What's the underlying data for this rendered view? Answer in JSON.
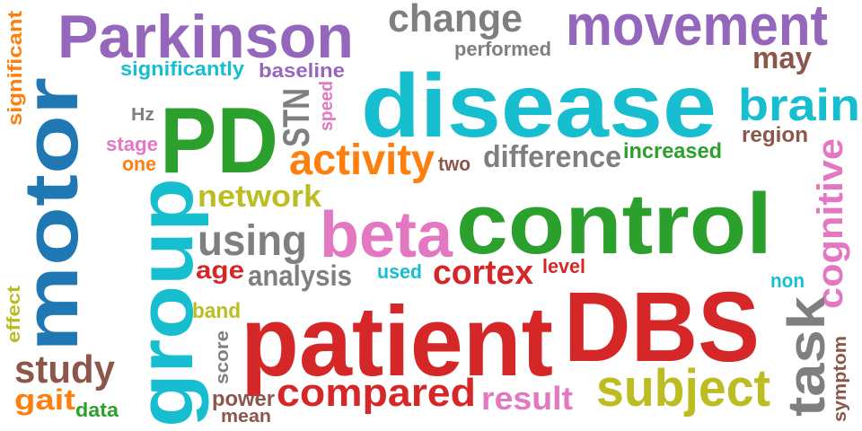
{
  "colors": {
    "red": "#d62728",
    "cyan": "#17becf",
    "green": "#2ca02c",
    "purple": "#9467bd",
    "blue": "#1f77b4",
    "orange": "#ff7f0e",
    "pink": "#e377c2",
    "gray": "#7f7f7f",
    "olive": "#bcbd22",
    "brown": "#8c564b"
  },
  "words": {
    "parkinson": "Parkinson",
    "change": "change",
    "movement": "movement",
    "performed": "performed",
    "may": "may",
    "significant": "significant",
    "significantly": "significantly",
    "baseline": "baseline",
    "disease": "disease",
    "brain": "brain",
    "region": "region",
    "hz": "Hz",
    "pd": "PD",
    "stn": "STN",
    "speed": "speed",
    "stage": "stage",
    "one": "one",
    "activity": "activity",
    "two": "two",
    "difference": "difference",
    "increased": "increased",
    "motor": "motor",
    "group": "group",
    "network": "network",
    "control": "control",
    "cognitive": "cognitive",
    "beta": "beta",
    "using": "using",
    "age": "age",
    "analysis": "analysis",
    "used": "used",
    "cortex": "cortex",
    "level": "level",
    "non": "non",
    "effect": "effect",
    "band": "band",
    "patient": "patient",
    "dbs": "DBS",
    "task": "task",
    "score": "score",
    "symptom": "symptom",
    "study": "study",
    "gait": "gait",
    "data": "data",
    "power": "power",
    "mean": "mean",
    "compared": "compared",
    "result": "result",
    "subject": "subject"
  }
}
